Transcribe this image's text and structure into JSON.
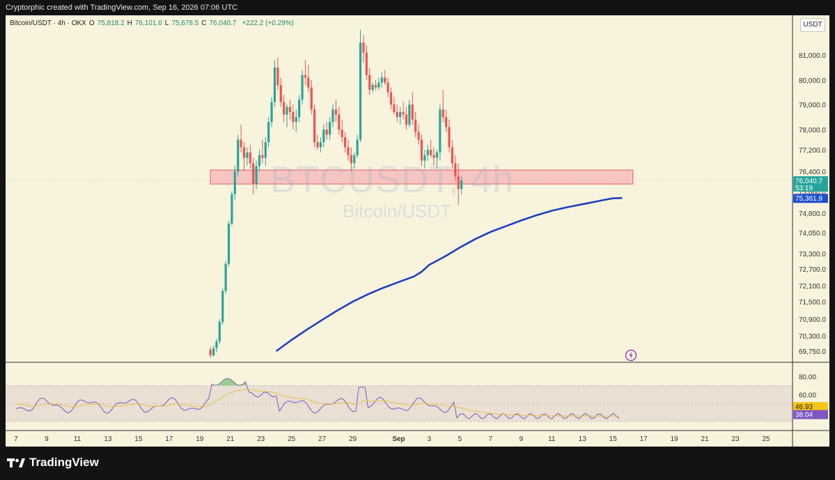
{
  "header": {
    "attribution": "Cryptorphic created with TradingView.com, Sep 16, 2026 07:06 UTC"
  },
  "legend": {
    "symbol": "Bitcoin/USDT · 4h · OKX",
    "open_label": "O",
    "open": "75,818.2",
    "high_label": "H",
    "high": "76,101.6",
    "low_label": "L",
    "low": "75,678.5",
    "close_label": "C",
    "close": "76,040.7",
    "change": "+222.2 (+0.29%)"
  },
  "currency": "USDT",
  "watermark": {
    "ticker": "BTCUSDT, 4h",
    "name": "Bitcoin/USDT"
  },
  "price_badges": {
    "last": "76,040.7",
    "countdown": "53:19",
    "ma": "75,361.9"
  },
  "rsi_badges": {
    "ma": "46.93",
    "rsi": "38.04"
  },
  "branding": {
    "logo_text": "TradingView"
  },
  "colors": {
    "up": "#26a69a",
    "down": "#ef5350",
    "ma_line": "#1b3fbf",
    "rsi_line": "#7e57c2",
    "rsi_ma": "#e6c34a",
    "zone_fill": "#f6bcbc",
    "zone_stroke": "#e0605f"
  },
  "chart_data": {
    "type": "candlestick",
    "title": "Bitcoin/USDT · 4h · OKX",
    "x_ticks": [
      "7",
      "9",
      "11",
      "13",
      "15",
      "17",
      "19",
      "21",
      "23",
      "25",
      "27",
      "29",
      "Sep",
      "3",
      "5",
      "7",
      "9",
      "11",
      "13",
      "15",
      "17",
      "19",
      "21",
      "23",
      "25"
    ],
    "x_tick_days": [
      7,
      9,
      11,
      13,
      15,
      17,
      19,
      21,
      23,
      25,
      27,
      29,
      32,
      34,
      36,
      38,
      40,
      42,
      44,
      46,
      48,
      50,
      52,
      54,
      56
    ],
    "y_ticks": [
      "81,000.0",
      "80,000.0",
      "79,000.0",
      "78,000.0",
      "77,200.0",
      "76,400.0",
      "75,600.0",
      "74,800.0",
      "74,050.0",
      "73,300.0",
      "72,700.0",
      "72,100.0",
      "71,500.0",
      "70,900.0",
      "70,300.0",
      "69,750.0"
    ],
    "y_tick_values": [
      81000,
      80000,
      79000,
      78000,
      77200,
      76400,
      75600,
      74800,
      74050,
      73300,
      72700,
      72100,
      71500,
      70900,
      70300,
      69750
    ],
    "resistance_zone": {
      "low": 75900,
      "high": 76450,
      "from_day": 19.7,
      "to_day": 47.3
    },
    "moving_average": {
      "name": "",
      "points": [
        [
          24.0,
          69750
        ],
        [
          25.0,
          70150
        ],
        [
          26.0,
          70520
        ],
        [
          27.0,
          70870
        ],
        [
          28.0,
          71200
        ],
        [
          29.0,
          71500
        ],
        [
          30.0,
          71780
        ],
        [
          31.0,
          72020
        ],
        [
          32.0,
          72230
        ],
        [
          33.0,
          72430
        ],
        [
          33.5,
          72600
        ],
        [
          34.0,
          72860
        ],
        [
          35.0,
          73180
        ],
        [
          36.0,
          73520
        ],
        [
          37.0,
          73820
        ],
        [
          38.0,
          74080
        ],
        [
          39.0,
          74300
        ],
        [
          40.0,
          74520
        ],
        [
          41.0,
          74720
        ],
        [
          42.0,
          74890
        ],
        [
          43.0,
          75020
        ],
        [
          44.0,
          75130
        ],
        [
          45.0,
          75240
        ],
        [
          45.5,
          75300
        ],
        [
          46.0,
          75350
        ],
        [
          46.6,
          75362
        ]
      ]
    },
    "candles": [
      [
        19.7,
        69800,
        69900,
        69500,
        69600
      ],
      [
        19.9,
        69600,
        69950,
        69550,
        69850
      ],
      [
        20.1,
        69850,
        70200,
        69700,
        70100
      ],
      [
        20.3,
        70100,
        70900,
        70000,
        70800
      ],
      [
        20.5,
        70800,
        72000,
        70700,
        71900
      ],
      [
        20.7,
        71900,
        73000,
        71800,
        72900
      ],
      [
        20.9,
        72900,
        74500,
        72800,
        74400
      ],
      [
        21.1,
        74400,
        75600,
        74300,
        75500
      ],
      [
        21.3,
        75500,
        76600,
        75300,
        76400
      ],
      [
        21.5,
        76400,
        77800,
        76200,
        77600
      ],
      [
        21.7,
        77600,
        78200,
        77100,
        77300
      ],
      [
        21.9,
        77300,
        77500,
        76400,
        76900
      ],
      [
        22.1,
        76900,
        77300,
        76600,
        77100
      ],
      [
        22.3,
        77100,
        77400,
        76500,
        76700
      ],
      [
        22.5,
        76700,
        76900,
        75500,
        75900
      ],
      [
        22.7,
        75900,
        76800,
        75700,
        76600
      ],
      [
        22.9,
        76600,
        77200,
        76400,
        77000
      ],
      [
        23.1,
        77000,
        77600,
        76700,
        76900
      ],
      [
        23.3,
        76900,
        77700,
        76600,
        77500
      ],
      [
        23.5,
        77500,
        78500,
        77300,
        78300
      ],
      [
        23.7,
        78300,
        79300,
        78100,
        79100
      ],
      [
        23.9,
        79100,
        80800,
        78900,
        80500
      ],
      [
        24.1,
        80500,
        80900,
        79600,
        79800
      ],
      [
        24.3,
        79800,
        80100,
        78900,
        79100
      ],
      [
        24.5,
        79100,
        79400,
        78300,
        78600
      ],
      [
        24.7,
        78600,
        79000,
        78100,
        78900
      ],
      [
        24.9,
        78900,
        79200,
        78400,
        78700
      ],
      [
        25.1,
        78700,
        79000,
        78000,
        78300
      ],
      [
        25.3,
        78300,
        78800,
        77900,
        78500
      ],
      [
        25.5,
        78500,
        79400,
        78300,
        79200
      ],
      [
        25.7,
        79200,
        80400,
        79000,
        80200
      ],
      [
        25.9,
        80200,
        80800,
        79800,
        80100
      ],
      [
        26.1,
        80100,
        80600,
        79500,
        79700
      ],
      [
        26.3,
        79700,
        80000,
        78600,
        78800
      ],
      [
        26.5,
        78800,
        79000,
        77300,
        77500
      ],
      [
        26.7,
        77500,
        77800,
        77200,
        77300
      ],
      [
        26.9,
        77300,
        77700,
        77100,
        77500
      ],
      [
        27.1,
        77500,
        78200,
        77300,
        78000
      ],
      [
        27.3,
        78000,
        78300,
        77600,
        77800
      ],
      [
        27.5,
        77800,
        78500,
        77600,
        78300
      ],
      [
        27.7,
        78300,
        79000,
        78100,
        78800
      ],
      [
        27.9,
        78800,
        79200,
        78300,
        78600
      ],
      [
        28.1,
        78600,
        78900,
        77800,
        78000
      ],
      [
        28.3,
        78000,
        78400,
        77500,
        77700
      ],
      [
        28.5,
        77700,
        77900,
        77100,
        77300
      ],
      [
        28.7,
        77300,
        77600,
        76800,
        77000
      ],
      [
        28.9,
        77000,
        77300,
        76400,
        76700
      ],
      [
        29.1,
        76700,
        77100,
        76500,
        77000
      ],
      [
        29.3,
        77000,
        77800,
        76900,
        77600
      ],
      [
        29.5,
        77600,
        82000,
        77500,
        81500
      ],
      [
        29.7,
        81500,
        81800,
        80700,
        81100
      ],
      [
        29.9,
        81100,
        81400,
        80000,
        80200
      ],
      [
        30.1,
        80200,
        80500,
        79400,
        79600
      ],
      [
        30.3,
        79600,
        79900,
        79500,
        79800
      ],
      [
        30.5,
        79800,
        80000,
        79600,
        79700
      ],
      [
        30.7,
        79700,
        80100,
        79600,
        79900
      ],
      [
        30.9,
        79900,
        80300,
        79700,
        80100
      ],
      [
        31.1,
        80100,
        80400,
        79800,
        79900
      ],
      [
        31.3,
        79900,
        80100,
        79300,
        79500
      ],
      [
        31.5,
        79500,
        79700,
        78800,
        79000
      ],
      [
        31.7,
        79000,
        79300,
        78600,
        78700
      ],
      [
        31.9,
        78700,
        79000,
        78300,
        78500
      ],
      [
        32.1,
        78500,
        78900,
        78200,
        78700
      ],
      [
        32.3,
        78700,
        79100,
        78400,
        78600
      ],
      [
        32.5,
        78600,
        78900,
        78000,
        78200
      ],
      [
        32.7,
        78200,
        79200,
        78100,
        79000
      ],
      [
        32.9,
        79000,
        79500,
        78200,
        78400
      ],
      [
        33.1,
        78400,
        78700,
        77700,
        77900
      ],
      [
        33.3,
        77900,
        78200,
        77400,
        77600
      ],
      [
        33.5,
        77600,
        77800,
        76600,
        76800
      ],
      [
        33.7,
        76800,
        77200,
        76500,
        77000
      ],
      [
        33.9,
        77000,
        77400,
        76800,
        77200
      ],
      [
        34.1,
        77200,
        77600,
        76900,
        77000
      ],
      [
        34.3,
        77000,
        77300,
        76600,
        76900
      ],
      [
        34.5,
        76900,
        77200,
        76500,
        77100
      ],
      [
        34.7,
        77100,
        79000,
        76800,
        78800
      ],
      [
        34.9,
        78800,
        79600,
        78300,
        78500
      ],
      [
        35.1,
        78500,
        78800,
        77900,
        78100
      ],
      [
        35.3,
        78100,
        78400,
        77100,
        77300
      ],
      [
        35.5,
        77300,
        77600,
        76500,
        76700
      ],
      [
        35.7,
        76700,
        77000,
        76000,
        76200
      ],
      [
        35.9,
        76200,
        76700,
        75100,
        75700
      ],
      [
        36.1,
        75700,
        76200,
        75500,
        76040
      ]
    ]
  }
}
